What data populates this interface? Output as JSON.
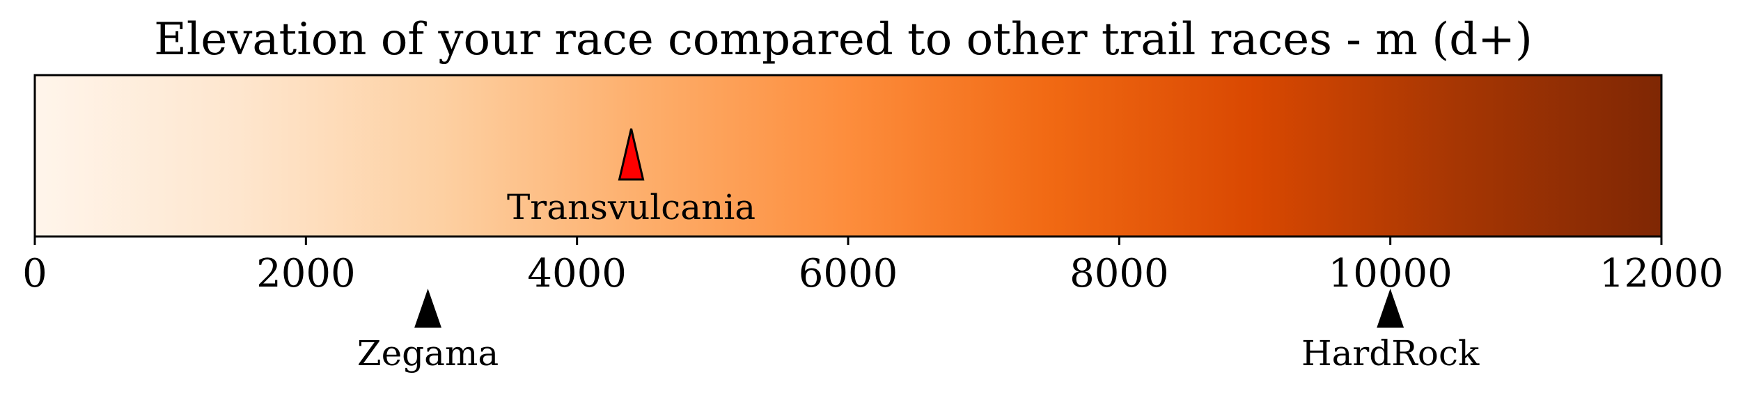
{
  "chart_data": {
    "type": "colorbar",
    "title": "Elevation of your race compared to other trail races - m (d+)",
    "xlim": [
      0,
      12000
    ],
    "ticks": [
      0,
      2000,
      4000,
      6000,
      8000,
      10000,
      12000
    ],
    "tick_labels": [
      "0",
      "2000",
      "4000",
      "6000",
      "8000",
      "10000",
      "12000"
    ],
    "colormap": [
      "#fff5eb",
      "#fee6ce",
      "#fdd0a2",
      "#fdae6b",
      "#fd8d3c",
      "#f16913",
      "#d94801",
      "#a63603",
      "#7f2704"
    ],
    "your_race": {
      "label": "Transvulcania",
      "value": 4400,
      "color": "#ff0000"
    },
    "other_races": [
      {
        "label": "Zegama",
        "value": 2900,
        "color": "#000000"
      },
      {
        "label": "HardRock",
        "value": 10000,
        "color": "#000000"
      }
    ]
  }
}
